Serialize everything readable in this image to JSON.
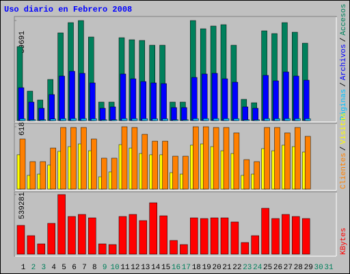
{
  "chart_data": [
    {
      "type": "bar",
      "title": "Uso diario en Febrero 2008",
      "legend_separator": "/",
      "ylim": [
        0,
        39691
      ],
      "yticks": [
        39691
      ],
      "series": [
        {
          "name": "Páginas",
          "color": "#00c0ff",
          "values": [
            700,
            350,
            340,
            620,
            760,
            800,
            790,
            720,
            330,
            340,
            780,
            760,
            740,
            700,
            690,
            330,
            320,
            770,
            780,
            790,
            760,
            720,
            340,
            320,
            780,
            760,
            790,
            770,
            740,
            0,
            0
          ]
        },
        {
          "name": "Archivos",
          "color": "#0000ff",
          "values": [
            13050,
            7340,
            4895,
            10330,
            17670,
            19575,
            18760,
            14950,
            4895,
            5440,
            18485,
            16585,
            15495,
            14950,
            14680,
            5165,
            5165,
            17125,
            18485,
            18760,
            16585,
            15225,
            5440,
            4895,
            17945,
            15770,
            19300,
            17670,
            16040,
            0,
            0
          ]
        },
        {
          "name": "Accesos",
          "color": "#00805c",
          "values": [
            29360,
            11690,
            8155,
            16310,
            34800,
            38875,
            39691,
            33165,
            7340,
            7340,
            32895,
            32080,
            31805,
            29905,
            29905,
            7340,
            7340,
            39691,
            36430,
            37515,
            38060,
            29905,
            8430,
            7070,
            35615,
            34525,
            38875,
            35070,
            30720,
            0,
            0
          ]
        }
      ]
    },
    {
      "type": "bar",
      "legend_separator": "/",
      "ylim": [
        0,
        618
      ],
      "yticks": [
        618
      ],
      "series": [
        {
          "name": "Clientes",
          "color": "#ff8000",
          "values": [
            496,
            272,
            272,
            407,
            611,
            611,
            611,
            496,
            306,
            306,
            618,
            611,
            543,
            475,
            475,
            326,
            326,
            618,
            618,
            611,
            611,
            557,
            292,
            272,
            611,
            611,
            557,
            611,
            523,
            0,
            0
          ]
        },
        {
          "name": "Visitas",
          "color": "#ffff00",
          "values": [
            340,
            136,
            149,
            238,
            374,
            421,
            448,
            380,
            122,
            170,
            441,
            407,
            353,
            340,
            340,
            163,
            149,
            435,
            448,
            421,
            380,
            353,
            136,
            149,
            401,
            380,
            435,
            421,
            367,
            0,
            0
          ]
        }
      ]
    },
    {
      "type": "bar",
      "ylim": [
        0,
        539281
      ],
      "yticks": [
        539281
      ],
      "categories": [
        "1",
        "2",
        "3",
        "4",
        "5",
        "6",
        "7",
        "8",
        "9",
        "10",
        "11",
        "12",
        "13",
        "14",
        "15",
        "16",
        "17",
        "18",
        "19",
        "20",
        "21",
        "22",
        "23",
        "24",
        "25",
        "26",
        "27",
        "28",
        "29",
        "30",
        "31"
      ],
      "category_colors": [
        "#000000",
        "#00805c",
        "#00805c",
        "#000000",
        "#000000",
        "#000000",
        "#000000",
        "#000000",
        "#00805c",
        "#00805c",
        "#000000",
        "#000000",
        "#000000",
        "#000000",
        "#000000",
        "#00805c",
        "#00805c",
        "#000000",
        "#000000",
        "#000000",
        "#000000",
        "#000000",
        "#00805c",
        "#00805c",
        "#000000",
        "#000000",
        "#000000",
        "#000000",
        "#000000",
        "#00805c",
        "#00805c"
      ],
      "series": [
        {
          "name": "KBytes",
          "color": "#ff0000",
          "values": [
            260360,
            167370,
            92980,
            278940,
            539281,
            340925,
            359520,
            328530,
            92980,
            86780,
            340925,
            359520,
            303730,
            464895,
            347120,
            123970,
            86780,
            328530,
            322330,
            328530,
            328530,
            291335,
            105380,
            167370,
            415310,
            322330,
            359520,
            340925,
            322330,
            0,
            0
          ]
        }
      ]
    }
  ]
}
